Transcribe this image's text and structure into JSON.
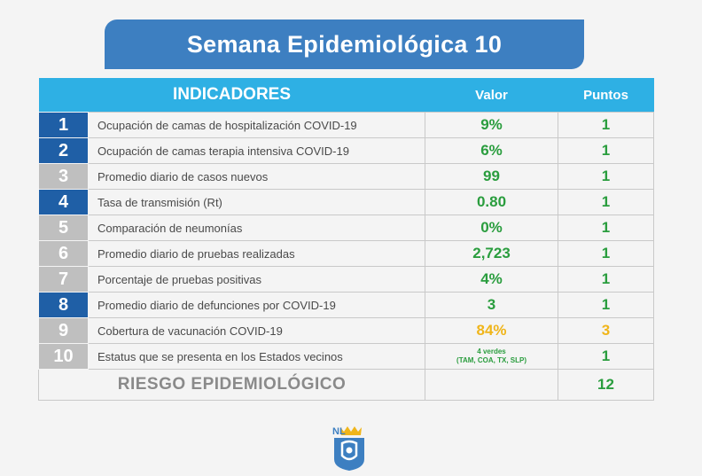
{
  "title": "Semana Epidemiológica 10",
  "header": {
    "indicators": "INDICADORES",
    "value": "Valor",
    "points": "Puntos"
  },
  "rows": [
    {
      "num": "1",
      "label": "Ocupación de camas de hospitalización COVID-19",
      "value": "9%",
      "points": "1"
    },
    {
      "num": "2",
      "label": "Ocupación de camas terapia intensiva COVID-19",
      "value": "6%",
      "points": "1"
    },
    {
      "num": "3",
      "label": "Promedio diario de casos nuevos",
      "value": "99",
      "points": "1"
    },
    {
      "num": "4",
      "label": "Tasa de transmisión (Rt)",
      "value": "0.80",
      "points": "1"
    },
    {
      "num": "5",
      "label": "Comparación de neumonías",
      "value": "0%",
      "points": "1"
    },
    {
      "num": "6",
      "label": "Promedio diario de pruebas realizadas",
      "value": "2,723",
      "points": "1"
    },
    {
      "num": "7",
      "label": "Porcentaje de pruebas positivas",
      "value": "4%",
      "points": "1"
    },
    {
      "num": "8",
      "label": "Promedio diario de defunciones por COVID-19",
      "value": "3",
      "points": "1"
    },
    {
      "num": "9",
      "label": "Cobertura de vacunación COVID-19",
      "value": "84%",
      "points": "3"
    },
    {
      "num": "10",
      "label": "Estatus que se presenta en los Estados vecinos",
      "value_line1": "4 verdes",
      "value_line2": "(TAM, COA, TX, SLP)",
      "points": "1"
    }
  ],
  "total": {
    "label": "RIESGO EPIDEMIOLÓGICO",
    "points": "12"
  },
  "logo": {
    "text": "NL",
    "icon": "nuevo-leon-shield-icon"
  },
  "colors": {
    "title_bg": "#3d7fc1",
    "header_bg": "#2eb0e4",
    "num_blue": "#1f5fa6",
    "num_grey": "#bfbfbf",
    "green": "#2a9d3e",
    "yellow": "#f0b51a"
  }
}
